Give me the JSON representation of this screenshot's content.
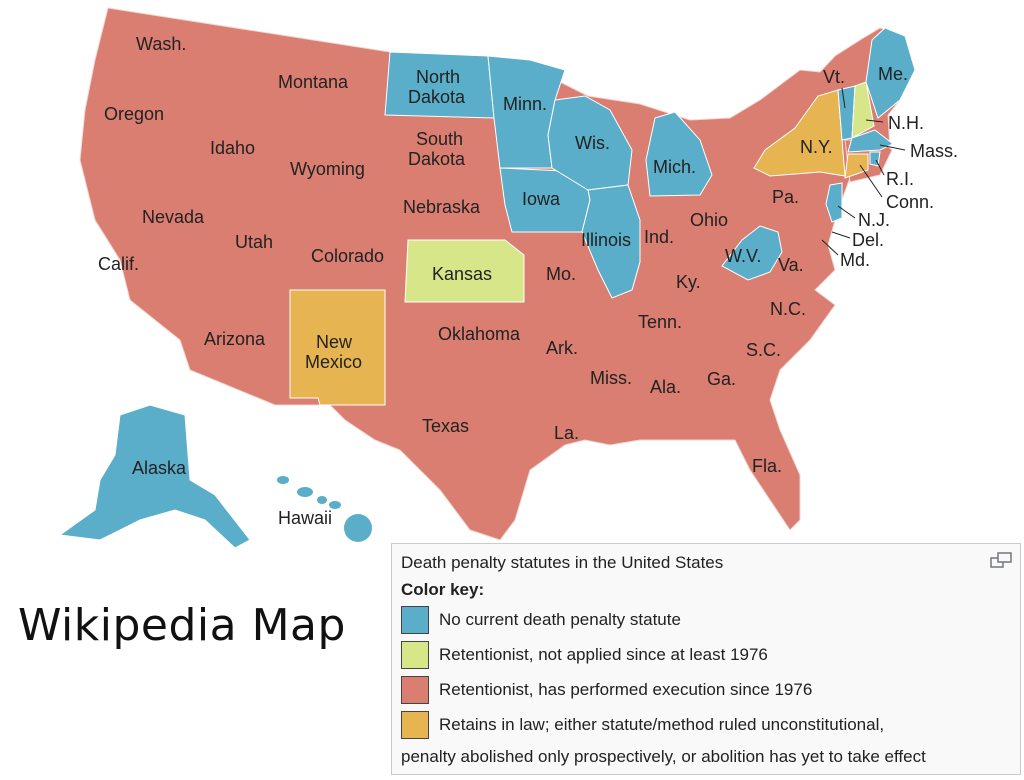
{
  "map": {
    "colors": {
      "none": "#5aaec9",
      "retentionist_not_applied": "#d8e68a",
      "retentionist_executed": "#d97e71",
      "retains_in_law": "#e6b451"
    },
    "state_labels": {
      "wash": "Wash.",
      "oregon": "Oregon",
      "calif": "Calif.",
      "idaho": "Idaho",
      "nevada": "Nevada",
      "montana": "Montana",
      "wyoming": "Wyoming",
      "utah": "Utah",
      "arizona": "Arizona",
      "colorado": "Colorado",
      "new_mexico_1": "New",
      "new_mexico_2": "Mexico",
      "north_dakota_1": "North",
      "north_dakota_2": "Dakota",
      "south_dakota_1": "South",
      "south_dakota_2": "Dakota",
      "nebraska": "Nebraska",
      "kansas": "Kansas",
      "oklahoma": "Oklahoma",
      "texas": "Texas",
      "minn": "Minn.",
      "iowa": "Iowa",
      "mo": "Mo.",
      "ark": "Ark.",
      "la": "La.",
      "wis": "Wis.",
      "illinois": "Illinois",
      "mich": "Mich.",
      "ind": "Ind.",
      "ohio": "Ohio",
      "ky": "Ky.",
      "tenn": "Tenn.",
      "miss": "Miss.",
      "ala": "Ala.",
      "ga": "Ga.",
      "fla": "Fla.",
      "sc": "S.C.",
      "nc": "N.C.",
      "va": "Va.",
      "wv": "W.V.",
      "pa": "Pa.",
      "ny": "N.Y.",
      "vt": "Vt.",
      "me": "Me.",
      "nh": "N.H.",
      "mass": "Mass.",
      "ri": "R.I.",
      "conn": "Conn.",
      "nj": "N.J.",
      "del": "Del.",
      "md": "Md.",
      "alaska": "Alaska",
      "hawaii": "Hawaii"
    }
  },
  "caption": "Wikipedia Map",
  "legend": {
    "title": "Death penalty statutes in the United States",
    "key_heading": "Color key:",
    "items": [
      {
        "label": "No current death penalty statute",
        "color": "#5aaec9"
      },
      {
        "label": "Retentionist, not applied since at least 1976",
        "color": "#d8e68a"
      },
      {
        "label": "Retentionist, has performed execution since 1976",
        "color": "#d97e71"
      },
      {
        "label": "Retains in law; either statute/method ruled unconstitutional,",
        "color": "#e6b451"
      }
    ],
    "extra_line": "penalty abolished only prospectively, or abolition has yet to take effect",
    "expand_icon": "expand-icon"
  }
}
